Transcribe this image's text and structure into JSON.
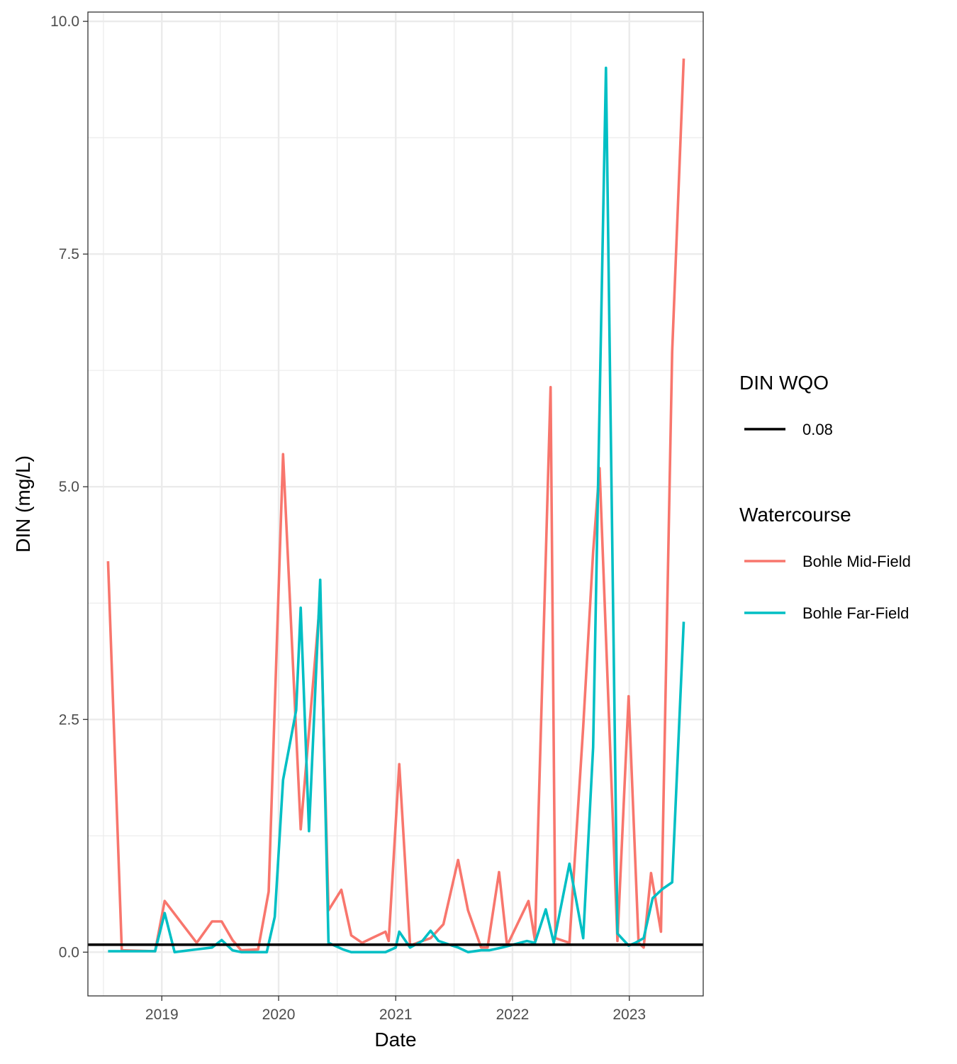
{
  "chart_data": {
    "type": "line",
    "xlabel": "Date",
    "ylabel": "DIN (mg/L)",
    "xlim": [
      "2018-05-15",
      "2023-08-20"
    ],
    "ylim": [
      -0.47,
      10.1
    ],
    "x_ticks": [
      "2019-01-01",
      "2020-01-01",
      "2021-01-01",
      "2022-01-01",
      "2023-01-01"
    ],
    "x_tick_labels": [
      "2019",
      "2020",
      "2021",
      "2022",
      "2023"
    ],
    "y_ticks": [
      0.0,
      2.5,
      5.0,
      7.5,
      10.0
    ],
    "y_tick_labels": [
      "0.0",
      "2.5",
      "5.0",
      "7.5",
      "10.0"
    ],
    "grid": true,
    "legend_position": "right",
    "reference_line": {
      "legend_title": "DIN WQO",
      "label": "0.08",
      "value": 0.08,
      "color": "#000000"
    },
    "legend_title": "Watercourse",
    "series": [
      {
        "name": "Bohle Mid-Field",
        "color": "#F8766D",
        "x": [
          "2018-07-17",
          "2018-08-29",
          "2018-12-11",
          "2019-01-10",
          "2019-04-20",
          "2019-06-07",
          "2019-07-07",
          "2019-08-10",
          "2019-09-06",
          "2019-10-29",
          "2019-12-01",
          "2020-01-15",
          "2020-03-10",
          "2020-05-10",
          "2020-06-05",
          "2020-07-15",
          "2020-08-15",
          "2020-09-18",
          "2020-10-18",
          "2020-11-30",
          "2020-12-10",
          "2021-01-12",
          "2021-02-15",
          "2021-03-25",
          "2021-04-20",
          "2021-05-30",
          "2021-07-15",
          "2021-08-15",
          "2021-09-25",
          "2021-10-15",
          "2021-11-20",
          "2021-12-15",
          "2022-02-20",
          "2022-03-12",
          "2022-04-30",
          "2022-05-15",
          "2022-06-28",
          "2022-08-10",
          "2022-09-10",
          "2022-09-30",
          "2022-11-25",
          "2022-12-30",
          "2023-01-30",
          "2023-02-15",
          "2023-03-10",
          "2023-04-10",
          "2023-05-15",
          "2023-06-20"
        ],
        "values": [
          4.2,
          0.02,
          0.01,
          0.55,
          0.1,
          0.33,
          0.33,
          0.13,
          0.02,
          0.03,
          0.65,
          5.35,
          1.32,
          3.8,
          0.45,
          0.67,
          0.18,
          0.1,
          0.15,
          0.22,
          0.12,
          2.02,
          0.07,
          0.12,
          0.15,
          0.3,
          0.99,
          0.45,
          0.05,
          0.05,
          0.86,
          0.07,
          0.55,
          0.13,
          6.07,
          0.15,
          0.1,
          2.42,
          4.3,
          5.2,
          0.12,
          2.75,
          0.1,
          0.05,
          0.85,
          0.22,
          6.45,
          9.6
        ]
      },
      {
        "name": "Bohle Far-Field",
        "color": "#00BFC4",
        "x": [
          "2018-07-17",
          "2018-08-29",
          "2018-12-11",
          "2019-01-10",
          "2019-02-10",
          "2019-04-20",
          "2019-06-07",
          "2019-07-07",
          "2019-08-10",
          "2019-09-06",
          "2019-11-25",
          "2019-12-20",
          "2020-01-15",
          "2020-02-25",
          "2020-03-10",
          "2020-04-05",
          "2020-05-10",
          "2020-06-05",
          "2020-07-20",
          "2020-08-15",
          "2020-09-18",
          "2020-10-18",
          "2020-11-30",
          "2021-01-01",
          "2021-01-12",
          "2021-02-15",
          "2021-03-25",
          "2021-04-20",
          "2021-05-15",
          "2021-07-15",
          "2021-08-15",
          "2021-09-25",
          "2021-10-20",
          "2021-11-30",
          "2022-02-15",
          "2022-03-12",
          "2022-04-15",
          "2022-05-10",
          "2022-06-28",
          "2022-08-10",
          "2022-09-10",
          "2022-10-20",
          "2022-11-25",
          "2022-12-30",
          "2023-01-20",
          "2023-02-15",
          "2023-03-15",
          "2023-04-15",
          "2023-05-15",
          "2023-06-20"
        ],
        "values": [
          0.01,
          0.01,
          0.01,
          0.42,
          0.0,
          0.03,
          0.05,
          0.13,
          0.02,
          0.0,
          0.0,
          0.38,
          1.85,
          2.6,
          3.7,
          1.3,
          4.0,
          0.1,
          0.03,
          0.0,
          0.0,
          0.0,
          0.0,
          0.05,
          0.22,
          0.05,
          0.12,
          0.23,
          0.12,
          0.05,
          0.0,
          0.02,
          0.02,
          0.05,
          0.12,
          0.1,
          0.46,
          0.1,
          0.95,
          0.15,
          2.2,
          9.5,
          0.2,
          0.07,
          0.1,
          0.15,
          0.58,
          0.68,
          0.75,
          3.55
        ]
      }
    ]
  }
}
